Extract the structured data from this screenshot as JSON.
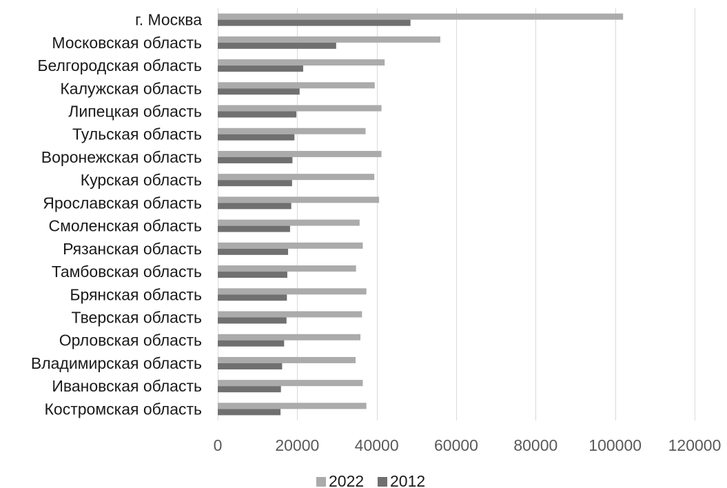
{
  "chart_data": {
    "type": "bar",
    "orientation": "horizontal",
    "categories": [
      "г. Москва",
      "Московская область",
      "Белгородская область",
      "Калужская область",
      "Липецкая область",
      "Тульская область",
      "Воронежская область",
      "Курская область",
      "Ярославская область",
      "Смоленская область",
      "Рязанская область",
      "Тамбовская область",
      "Брянская область",
      "Тверская область",
      "Орловская область",
      "Владимирская область",
      "Ивановская область",
      "Костромская область"
    ],
    "series": [
      {
        "name": "2022",
        "color": "#ababab",
        "values": [
          102000,
          56000,
          42000,
          39500,
          41200,
          37200,
          41200,
          39400,
          40600,
          35700,
          36500,
          34800,
          37400,
          36300,
          35900,
          34700,
          36500,
          37400
        ]
      },
      {
        "name": "2012",
        "color": "#707070",
        "values": [
          48500,
          29800,
          21500,
          20600,
          19800,
          19300,
          18800,
          18700,
          18500,
          18200,
          17700,
          17500,
          17400,
          17300,
          16700,
          16200,
          15900,
          15800
        ]
      }
    ],
    "xaxis": {
      "ticks": [
        0,
        20000,
        40000,
        60000,
        80000,
        100000,
        120000
      ],
      "tick_labels": [
        "0",
        "20000",
        "40000",
        "60000",
        "80000",
        "100000",
        "120000"
      ],
      "range": [
        0,
        120000
      ]
    },
    "title": "",
    "xlabel": "",
    "ylabel": "",
    "grid": "vertical",
    "legend": {
      "position": "bottom",
      "entries": [
        "2022",
        "2012"
      ]
    }
  }
}
